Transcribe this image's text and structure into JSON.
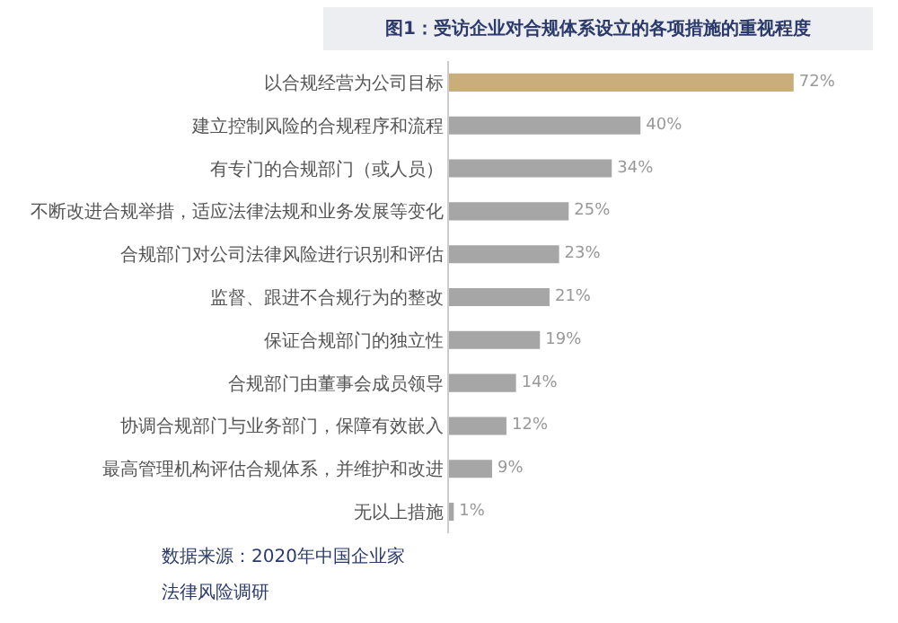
{
  "chart_data": {
    "type": "bar",
    "orientation": "horizontal",
    "title": "图1：受访企业对合规体系设立的各项措施的重视程度",
    "categories": [
      "以合规经营为公司目标",
      "建立控制风险的合规程序和流程",
      "有专门的合规部门（或人员）",
      "不断改进合规举措，适应法律法规和业务发展等变化",
      "合规部门对公司法律风险进行识别和评估",
      "监督、跟进不合规行为的整改",
      "保证合规部门的独立性",
      "合规部门由董事会成员领导",
      "协调合规部门与业务部门，保障有效嵌入",
      "最高管理机构评估合规体系，并维护和改进",
      "无以上措施"
    ],
    "values": [
      72,
      40,
      34,
      25,
      23,
      21,
      19,
      14,
      12,
      9,
      1
    ],
    "value_labels": [
      "72%",
      "40%",
      "34%",
      "25%",
      "23%",
      "21%",
      "19%",
      "14%",
      "12%",
      "9%",
      "1%"
    ],
    "colors": [
      "#c9ae7c",
      "#a6a6a6",
      "#a6a6a6",
      "#a6a6a6",
      "#a6a6a6",
      "#a6a6a6",
      "#a6a6a6",
      "#a6a6a6",
      "#a6a6a6",
      "#a6a6a6",
      "#a6a6a6"
    ],
    "annotations": [
      "数据来源：2020年中国企业家",
      "法律风险调研"
    ]
  }
}
